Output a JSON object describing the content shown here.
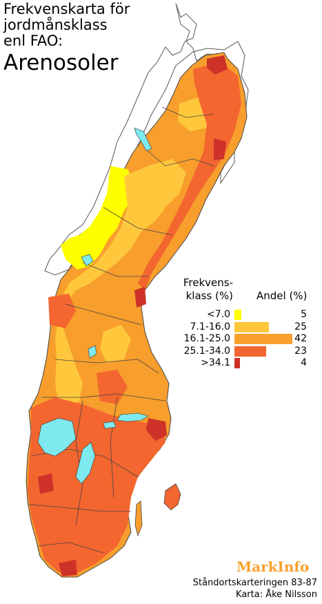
{
  "title": {
    "line1": "Frekvenskarta för",
    "line2": "jordmånsklass",
    "line3": "enl FAO:",
    "soil": "Arenosoler"
  },
  "legend": {
    "heading_left_1": "Frekvens-",
    "heading_left_2": "klass (%)",
    "heading_right": "Andel (%)",
    "classes": [
      {
        "label": "<7.0",
        "color": "#ffff00",
        "share": 5
      },
      {
        "label": "7.1-16.0",
        "color": "#ffc83c",
        "share": 25
      },
      {
        "label": "16.1-25.0",
        "color": "#f9a02d",
        "share": 42
      },
      {
        "label": "25.1-34.0",
        "color": "#f3662f",
        "share": 23
      },
      {
        "label": ">34.1",
        "color": "#cd3127",
        "share": 4
      }
    ]
  },
  "brand": "MarkInfo",
  "credits": {
    "line1": "Ståndortskarteringen 83-87",
    "line2": "Karta: Åke Nilsson"
  },
  "colors": {
    "lake": "#7fe9f0",
    "neighbor_border": "#555555",
    "county_border": "#444444"
  }
}
